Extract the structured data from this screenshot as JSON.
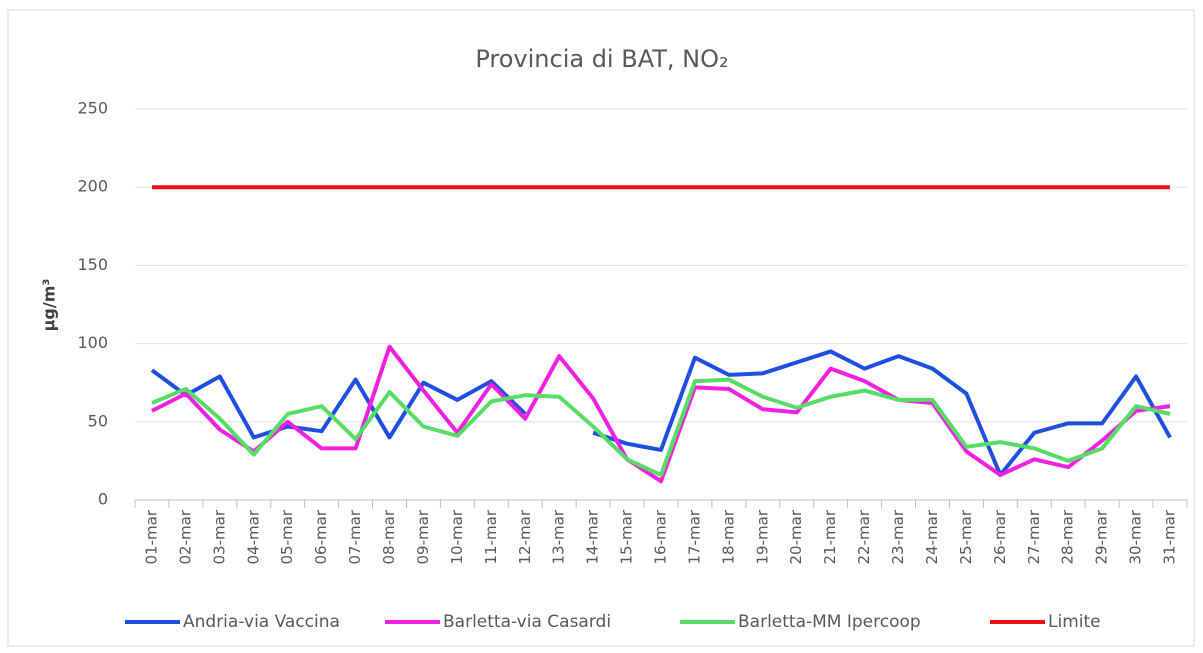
{
  "chart_data": {
    "type": "line",
    "title": "Provincia di BAT, NO₂",
    "y_label": "µg/m³",
    "categories": [
      "01-mar",
      "02-mar",
      "03-mar",
      "04-mar",
      "05-mar",
      "06-mar",
      "07-mar",
      "08-mar",
      "09-mar",
      "10-mar",
      "11-mar",
      "12-mar",
      "13-mar",
      "14-mar",
      "15-mar",
      "16-mar",
      "17-mar",
      "18-mar",
      "19-mar",
      "20-mar",
      "21-mar",
      "22-mar",
      "23-mar",
      "24-mar",
      "25-mar",
      "26-mar",
      "27-mar",
      "28-mar",
      "29-mar",
      "30-mar",
      "31-mar"
    ],
    "series": [
      {
        "name": "Andria-via Vaccina",
        "color": "#1f4fe0",
        "values": [
          83,
          67,
          79,
          40,
          47,
          44,
          77,
          40,
          75,
          64,
          76,
          55,
          null,
          43,
          36,
          32,
          91,
          80,
          81,
          88,
          95,
          84,
          92,
          84,
          68,
          16,
          43,
          49,
          49,
          79,
          40
        ]
      },
      {
        "name": "Barletta-via Casardi",
        "color": "#f020e0",
        "values": [
          57,
          68,
          45,
          31,
          50,
          33,
          33,
          98,
          70,
          43,
          74,
          52,
          92,
          65,
          26,
          12,
          72,
          71,
          58,
          56,
          84,
          76,
          64,
          62,
          31,
          16,
          26,
          21,
          38,
          57,
          60
        ]
      },
      {
        "name": "Barletta-MM Ipercoop",
        "color": "#55dd66",
        "values": [
          62,
          71,
          52,
          29,
          55,
          60,
          39,
          69,
          47,
          41,
          63,
          67,
          66,
          47,
          26,
          16,
          76,
          77,
          66,
          59,
          66,
          70,
          64,
          64,
          34,
          37,
          33,
          25,
          33,
          60,
          55
        ]
      },
      {
        "name": "Limite",
        "color": "#ee1111",
        "values": [
          200,
          200,
          200,
          200,
          200,
          200,
          200,
          200,
          200,
          200,
          200,
          200,
          200,
          200,
          200,
          200,
          200,
          200,
          200,
          200,
          200,
          200,
          200,
          200,
          200,
          200,
          200,
          200,
          200,
          200,
          200
        ]
      }
    ],
    "ylim": [
      0,
      250
    ],
    "yticks": [
      0,
      50,
      100,
      150,
      200,
      250
    ],
    "grid": true,
    "legend": "bottom"
  }
}
